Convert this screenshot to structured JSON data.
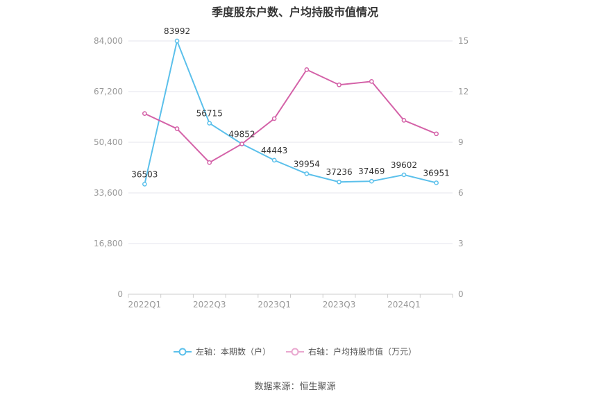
{
  "title": "季度股东户数、户均持股市值情况",
  "source": "数据来源：恒生聚源",
  "chart_data": {
    "type": "line",
    "categories": [
      "2022Q1",
      "2022Q2",
      "2022Q3",
      "2022Q4",
      "2023Q1",
      "2023Q2",
      "2023Q3",
      "2023Q4",
      "2024Q1",
      "2024Q2"
    ],
    "x_tick_labels": [
      "2022Q1",
      "",
      "2022Q3",
      "",
      "2023Q1",
      "",
      "2023Q3",
      "",
      "2024Q1",
      ""
    ],
    "y_left": {
      "ticks": [
        "0",
        "16,800",
        "33,600",
        "50,400",
        "67,200",
        "84,000"
      ],
      "range": [
        0,
        84000
      ]
    },
    "y_right": {
      "ticks": [
        "0",
        "3",
        "6",
        "9",
        "12",
        "15"
      ],
      "range": [
        0,
        15
      ]
    },
    "series": [
      {
        "name": "左轴：本期数（户）",
        "axis": "left",
        "color": "#5bc0eb",
        "values": [
          36503,
          83992,
          56715,
          49852,
          44443,
          39954,
          37236,
          37469,
          39602,
          36951
        ],
        "labels": [
          "36503",
          "83992",
          "56715",
          "49852",
          "44443",
          "39954",
          "37236",
          "37469",
          "39602",
          "36951"
        ]
      },
      {
        "name": "右轴：户均持股市值（万元）",
        "axis": "right",
        "color": "#d462a8",
        "values": [
          10.7,
          9.8,
          7.8,
          8.9,
          10.4,
          13.3,
          12.4,
          12.6,
          10.3,
          9.5
        ]
      }
    ],
    "grid": true,
    "legend_position": "bottom"
  }
}
